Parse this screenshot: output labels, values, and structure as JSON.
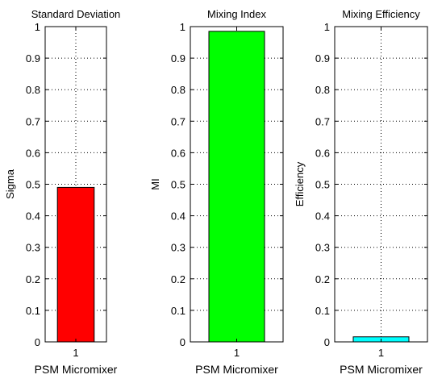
{
  "chart_data": [
    {
      "type": "bar",
      "title": "Standard Deviation",
      "xlabel": "PSM Micromixer",
      "ylabel": "Sigma",
      "categories": [
        "1"
      ],
      "values": [
        0.49
      ],
      "ylim": [
        0,
        1
      ],
      "yticks": [
        "0",
        "0.1",
        "0.2",
        "0.3",
        "0.4",
        "0.5",
        "0.6",
        "0.7",
        "0.8",
        "0.9",
        "1"
      ],
      "grid": true,
      "bar_color": "#ff0000"
    },
    {
      "type": "bar",
      "title": "Mixing Index",
      "xlabel": "PSM Micromixer",
      "ylabel": "MI",
      "categories": [
        "1"
      ],
      "values": [
        0.985
      ],
      "ylim": [
        0,
        1
      ],
      "yticks": [
        "0",
        "0.1",
        "0.2",
        "0.3",
        "0.4",
        "0.5",
        "0.6",
        "0.7",
        "0.8",
        "0.9",
        "1"
      ],
      "grid": true,
      "bar_color": "#00ff00"
    },
    {
      "type": "bar",
      "title": "Mixing Efficiency",
      "xlabel": "PSM Micromixer",
      "ylabel": "Efficiency",
      "categories": [
        "1"
      ],
      "values": [
        0.016
      ],
      "ylim": [
        0,
        1
      ],
      "yticks": [
        "0",
        "0.1",
        "0.2",
        "0.3",
        "0.4",
        "0.5",
        "0.6",
        "0.7",
        "0.8",
        "0.9",
        "1"
      ],
      "grid": true,
      "bar_color": "#00ffff"
    }
  ]
}
